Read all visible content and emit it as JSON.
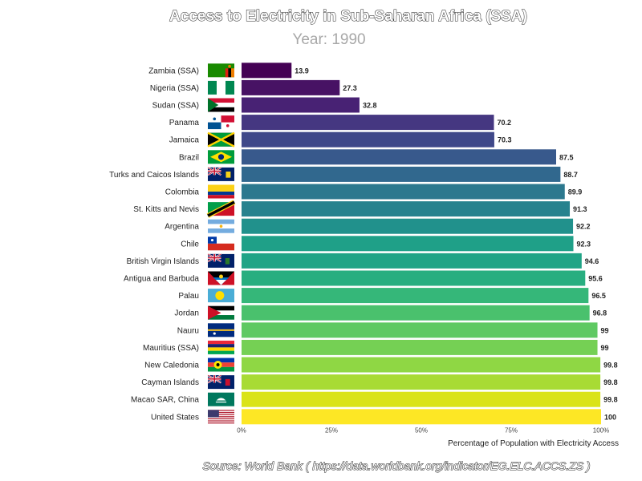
{
  "chart_data": {
    "type": "bar",
    "orientation": "horizontal",
    "title": "Access to Electricity in Sub-Saharan Africa (SSA)",
    "subtitle": "Year: 1990",
    "xlabel": "Percentage of Population with Electricity Access",
    "xlim": [
      0,
      100
    ],
    "x_ticks": [
      {
        "value": 0,
        "label": "0%"
      },
      {
        "value": 25,
        "label": "25%"
      },
      {
        "value": 50,
        "label": "50%"
      },
      {
        "value": 75,
        "label": "75%"
      },
      {
        "value": 100,
        "label": "100%"
      }
    ],
    "grid": false,
    "source": "Source: World Bank ( https://data.worldbank.org/indicator/EG.ELC.ACCS.ZS )",
    "categories": [
      "Zambia (SSA)",
      "Nigeria (SSA)",
      "Sudan (SSA)",
      "Panama",
      "Jamaica",
      "Brazil",
      "Turks and Caicos Islands",
      "Colombia",
      "St. Kitts and Nevis",
      "Argentina",
      "Chile",
      "British Virgin Islands",
      "Antigua and Barbuda",
      "Palau",
      "Jordan",
      "Nauru",
      "Mauritius (SSA)",
      "New Caledonia",
      "Cayman Islands",
      "Macao SAR, China",
      "United States"
    ],
    "values": [
      13.9,
      27.3,
      32.8,
      70.2,
      70.3,
      87.5,
      88.7,
      89.9,
      91.3,
      92.2,
      92.3,
      94.6,
      95.6,
      96.5,
      96.8,
      99,
      99,
      99.8,
      99.8,
      99.8,
      100
    ],
    "value_labels": [
      "13.9",
      "27.3",
      "32.8",
      "70.2",
      "70.3",
      "87.5",
      "88.7",
      "89.9",
      "91.3",
      "92.2",
      "92.3",
      "94.6",
      "95.6",
      "96.5",
      "96.8",
      "99",
      "99",
      "99.8",
      "99.8",
      "99.8",
      "100"
    ],
    "bar_colors": [
      "#440154",
      "#471264",
      "#482274",
      "#453781",
      "#3f4889",
      "#38598c",
      "#31688e",
      "#2c788e",
      "#26828e",
      "#21918c",
      "#1fa088",
      "#20a486",
      "#28ae80",
      "#35b779",
      "#4ac16d",
      "#5ec962",
      "#75d054",
      "#8fd744",
      "#a8db34",
      "#dae319",
      "#fde725"
    ],
    "flag_icons": [
      "flag-zambia-icon",
      "flag-nigeria-icon",
      "flag-sudan-icon",
      "flag-panama-icon",
      "flag-jamaica-icon",
      "flag-brazil-icon",
      "flag-turks-caicos-icon",
      "flag-colombia-icon",
      "flag-st-kitts-nevis-icon",
      "flag-argentina-icon",
      "flag-chile-icon",
      "flag-british-virgin-islands-icon",
      "flag-antigua-barbuda-icon",
      "flag-palau-icon",
      "flag-jordan-icon",
      "flag-nauru-icon",
      "flag-mauritius-icon",
      "flag-new-caledonia-icon",
      "flag-cayman-islands-icon",
      "flag-macao-icon",
      "flag-united-states-icon"
    ]
  }
}
